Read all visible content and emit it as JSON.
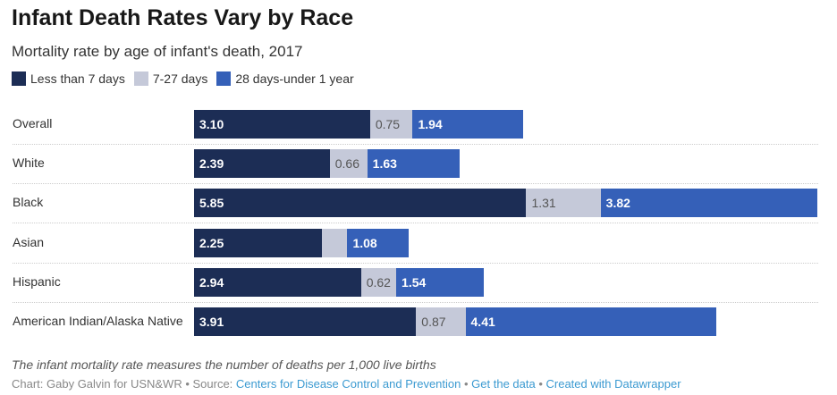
{
  "title": "Infant Death Rates Vary by Race",
  "subtitle": "Mortality rate by age of infant's death, 2017",
  "chart_data": {
    "type": "bar",
    "stacked": true,
    "orientation": "horizontal",
    "series": [
      {
        "name": "Less than 7 days",
        "color": "#1c2d55",
        "text_color": "#ffffff",
        "bold": true,
        "values": [
          3.1,
          2.39,
          5.85,
          2.25,
          2.94,
          3.91
        ]
      },
      {
        "name": "7-27 days",
        "color": "#c5c9d9",
        "text_color": "#555555",
        "bold": false,
        "values": [
          0.75,
          0.66,
          1.31,
          0.45,
          0.62,
          0.87
        ],
        "hidden_labels": [
          false,
          false,
          false,
          true,
          false,
          false
        ]
      },
      {
        "name": "28 days-under 1 year",
        "color": "#3560b8",
        "text_color": "#ffffff",
        "bold": true,
        "values": [
          1.94,
          1.63,
          3.82,
          1.08,
          1.54,
          4.41
        ]
      }
    ],
    "categories": [
      "Overall",
      "White",
      "Black",
      "Asian",
      "Hispanic",
      "American Indian/Alaska Native"
    ],
    "xlim": [
      0,
      11
    ],
    "legend": "top-left"
  },
  "footer": {
    "note": "The infant mortality rate measures the number of deaths per 1,000 live births",
    "credit": "Chart: Gaby Galvin for USN&WR • Source: ",
    "source_link": "Centers for Disease Control and Prevention",
    "sep": " • ",
    "data_link": "Get the data",
    "dw_link": "Created with Datawrapper"
  }
}
